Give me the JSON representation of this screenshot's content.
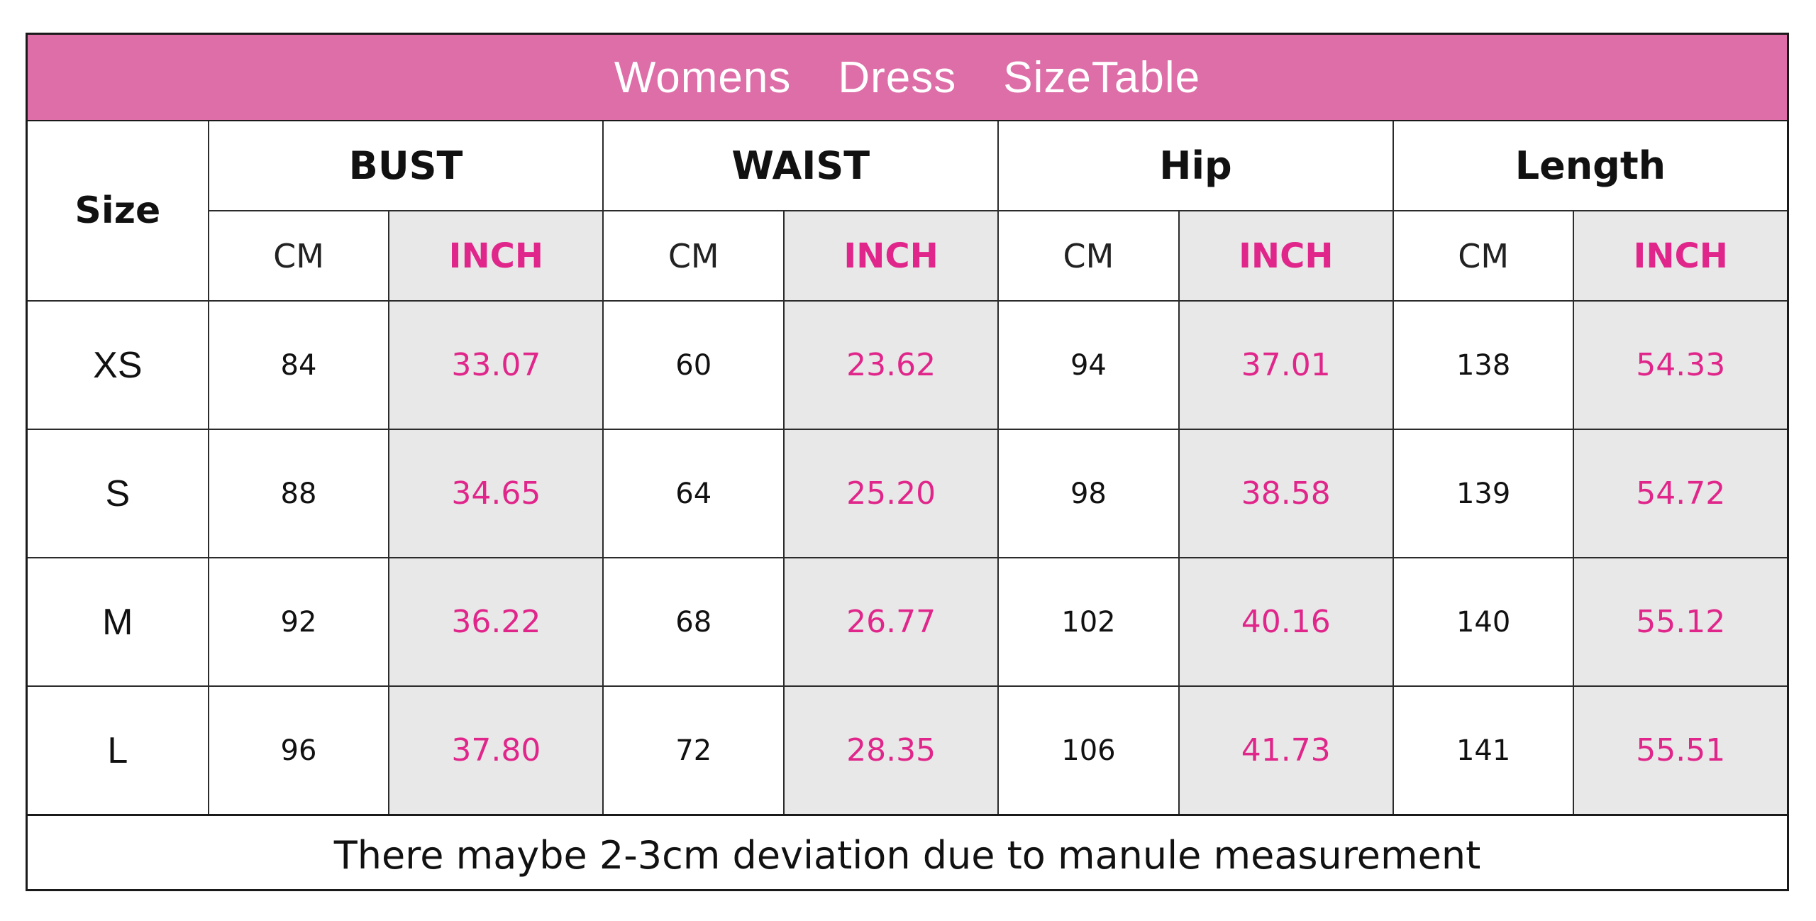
{
  "title": {
    "word1": "Womens",
    "word2": "Dress",
    "word3": "SizeTable"
  },
  "colors": {
    "title_bar": "#dd6ea8",
    "inch_text": "#e0268a",
    "inch_fill": "#e8e8e8"
  },
  "table": {
    "size_header": "Size",
    "groups": [
      "BUST",
      "WAIST",
      "Hip",
      "Length"
    ],
    "units": {
      "cm": "CM",
      "inch": "INCH"
    },
    "rows": [
      {
        "size": "XS",
        "values": [
          "84",
          "33.07",
          "60",
          "23.62",
          "94",
          "37.01",
          "138",
          "54.33"
        ]
      },
      {
        "size": "S",
        "values": [
          "88",
          "34.65",
          "64",
          "25.20",
          "98",
          "38.58",
          "139",
          "54.72"
        ]
      },
      {
        "size": "M",
        "values": [
          "92",
          "36.22",
          "68",
          "26.77",
          "102",
          "40.16",
          "140",
          "55.12"
        ]
      },
      {
        "size": "L",
        "values": [
          "96",
          "37.80",
          "72",
          "28.35",
          "106",
          "41.73",
          "141",
          "55.51"
        ]
      }
    ]
  },
  "footnote": "There maybe 2-3cm deviation due to manule measurement"
}
